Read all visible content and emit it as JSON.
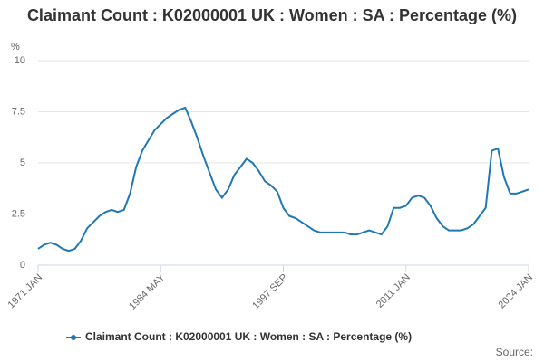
{
  "chart_data": {
    "type": "line",
    "title": "Claimant Count : K02000001 UK : Women : SA : Percentage (%)",
    "y_unit": "%",
    "source_label": "Source:",
    "categories": [
      "1971 JAN",
      null,
      null,
      null,
      null,
      null,
      null,
      null,
      null,
      null,
      null,
      null,
      null,
      null,
      null,
      null,
      null,
      null,
      null,
      null,
      "1984 MAY",
      null,
      null,
      null,
      null,
      null,
      null,
      null,
      null,
      null,
      null,
      null,
      null,
      null,
      null,
      null,
      null,
      null,
      null,
      null,
      "1997 SEP",
      null,
      null,
      null,
      null,
      null,
      null,
      null,
      null,
      null,
      null,
      null,
      null,
      null,
      null,
      null,
      null,
      null,
      null,
      null,
      "2011 JAN",
      null,
      null,
      null,
      null,
      null,
      null,
      null,
      null,
      null,
      null,
      null,
      null,
      null,
      null,
      null,
      null,
      null,
      null,
      null,
      "2024 JAN"
    ],
    "series": [
      {
        "name": "Claimant Count : K02000001 UK : Women : SA : Percentage (%)",
        "color": "#1f78b4",
        "values": [
          0.8,
          1.0,
          1.1,
          1.0,
          0.8,
          0.7,
          0.8,
          1.2,
          1.8,
          2.1,
          2.4,
          2.6,
          2.7,
          2.6,
          2.7,
          3.5,
          4.8,
          5.6,
          6.1,
          6.6,
          6.9,
          7.2,
          7.4,
          7.6,
          7.7,
          7.0,
          6.2,
          5.3,
          4.5,
          3.7,
          3.3,
          3.7,
          4.4,
          4.8,
          5.2,
          5.0,
          4.6,
          4.1,
          3.9,
          3.6,
          2.8,
          2.4,
          2.3,
          2.1,
          1.9,
          1.7,
          1.6,
          1.6,
          1.6,
          1.6,
          1.6,
          1.5,
          1.5,
          1.6,
          1.7,
          1.6,
          1.5,
          1.9,
          2.8,
          2.8,
          2.9,
          3.3,
          3.4,
          3.3,
          2.9,
          2.3,
          1.9,
          1.7,
          1.7,
          1.7,
          1.8,
          2.0,
          2.4,
          2.8,
          5.6,
          5.7,
          4.3,
          3.5,
          3.5,
          3.6,
          3.7
        ]
      }
    ],
    "ylim": [
      0,
      10
    ],
    "yticks": [
      0,
      2.5,
      5,
      7.5,
      10
    ],
    "grid": true
  }
}
